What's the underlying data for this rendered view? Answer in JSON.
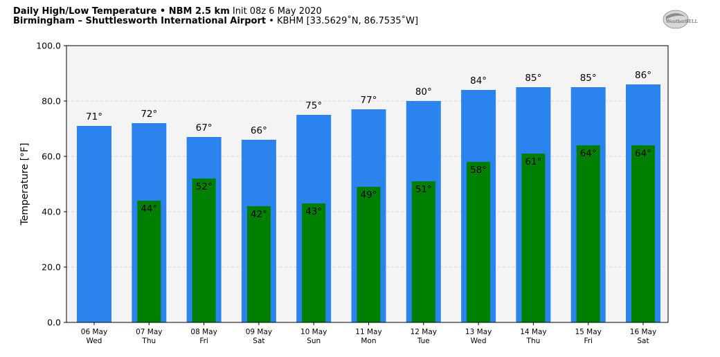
{
  "header": {
    "title_bold": "Daily High/Low Temperature • NBM 2.5 km",
    "init": "Init 08z 6 May 2020",
    "location_bold": "Birmingham – Shuttlesworth International Airport",
    "station": "• KBHM [33.5629˚N, 86.7535˚W]"
  },
  "logo": {
    "text": "WeatherBELL",
    "icon": "weatherbell-swirl-logo"
  },
  "colors": {
    "high_bar": "#2b84ee",
    "low_bar": "#008000",
    "plot_bg": "#f4f4f4",
    "grid": "#cccccc"
  },
  "chart_data": {
    "type": "bar",
    "title": "Daily High/Low Temperature • NBM 2.5 km",
    "ylabel": "Temperature [°F]",
    "ylim": [
      0,
      100
    ],
    "yticks": [
      "0.0",
      "20.0",
      "40.0",
      "60.0",
      "80.0",
      "100.0"
    ],
    "grid": true,
    "categories": [
      "06 May",
      "07 May",
      "08 May",
      "09 May",
      "10 May",
      "11 May",
      "12 May",
      "13 May",
      "14 May",
      "15 May",
      "16 May"
    ],
    "weekdays": [
      "Wed",
      "Thu",
      "Fri",
      "Sat",
      "Sun",
      "Mon",
      "Tue",
      "Wed",
      "Thu",
      "Fri",
      "Sat"
    ],
    "series": [
      {
        "values": [
          71,
          72,
          67,
          66,
          75,
          77,
          80,
          84,
          85,
          85,
          86
        ],
        "labels": [
          "71°",
          "72°",
          "67°",
          "66°",
          "75°",
          "77°",
          "80°",
          "84°",
          "85°",
          "85°",
          "86°"
        ]
      },
      {
        "values": [
          null,
          44,
          52,
          42,
          43,
          49,
          51,
          58,
          61,
          64,
          64
        ],
        "labels": [
          "",
          "44°",
          "52°",
          "42°",
          "43°",
          "49°",
          "51°",
          "58°",
          "61°",
          "64°",
          "64°"
        ]
      }
    ]
  }
}
